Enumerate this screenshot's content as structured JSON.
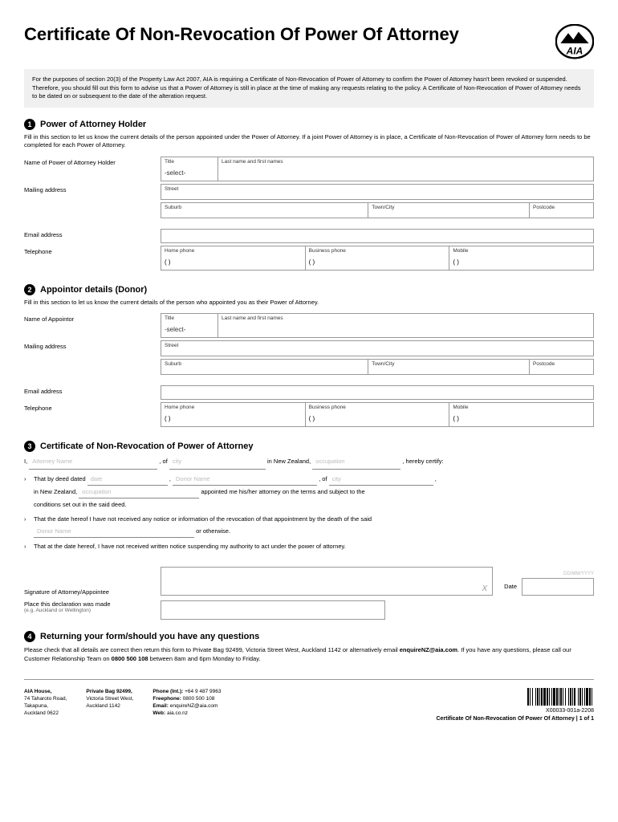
{
  "title": "Certificate Of Non-Revocation Of Power Of Attorney",
  "logo_text": "AIA",
  "intro": "For the purposes of section 20(3) of the Property Law Act 2007, AIA is requiring a Certificate of Non-Revocation of Power of Attorney to confirm the Power of Attorney hasn't been revoked or suspended. Therefore, you should fill out this form to advise us that a Power of Attorney is still in place at the time of making any requests relating to the policy. A Certificate of Non-Revocation of Power of Attorney needs to be dated on or subsequent to the date of the alteration request.",
  "s1": {
    "num": "1",
    "title": "Power of Attorney Holder",
    "desc": "Fill in this section to let us know the current details of the person appointed under the Power of Attorney. If a joint Power of Attorney is in place, a Certificate of Non-Revocation of Power of Attorney form needs to be completed for each Power of Attorney.",
    "name_label": "Name of Power of Attorney Holder",
    "mail_label": "Mailing address",
    "email_label": "Email address",
    "tel_label": "Telephone"
  },
  "s2": {
    "num": "2",
    "title": "Appointor details (Donor)",
    "desc": "Fill in this section to let us know the current details of the person who appointed you as their Power of Attorney.",
    "name_label": "Name of Appointor",
    "mail_label": "Mailing address",
    "email_label": "Email address",
    "tel_label": "Telephone"
  },
  "s3": {
    "num": "3",
    "title": "Certificate of Non-Revocation of Power of Attorney",
    "line_i": "I,",
    "attorney_name": "Attorney Name",
    "of": ", of",
    "city": "city",
    "in_nz": "in New Zealand,",
    "occupation": "occupation",
    "hereby": ", hereby certify:",
    "b1a": "That by deed dated",
    "date": "date",
    "comma": ",",
    "donor": "Donor Name",
    "b1b": "in New Zealand,",
    "b1c": "appointed me his/her attorney on the terms and subject to the",
    "b1d": "conditions set out in the said deed.",
    "b2a": "That the date hereof I have not received any notice or information of the revocation of that appointment by the death of the said",
    "b2b": "or otherwise.",
    "b3": "That at the date hereof, I have not received written notice suspending my authority to act under the power of attorney.",
    "sig_label": "Signature of Attorney/Appointee",
    "date_label": "Date",
    "date_hint": "DD/MM/YYYY",
    "place_label": "Place this declaration was made",
    "place_sub": "(e.g. Auckland or Wellington)"
  },
  "s4": {
    "num": "4",
    "title": "Returning your form/should you have any questions",
    "text1": "Please check that all details are correct then return this form to Private Bag 92499, Victoria Street West, Auckland 1142 or alternatively email ",
    "email": "enquireNZ@aia.com",
    "text2": ". If you have any questions, please call our Customer Relationship Team on ",
    "phone": "0800 500 108",
    "text3": " between 8am and 6pm Monday to Friday."
  },
  "fields": {
    "title": "Title",
    "select": "-select-",
    "lastname": "Last name and first names",
    "street": "Street",
    "suburb": "Suburb",
    "town": "Town/City",
    "postcode": "Postcode",
    "home": "Home phone",
    "business": "Business phone",
    "mobile": "Mobile",
    "paren": "(        )"
  },
  "footer": {
    "col1": {
      "name": "AIA House,",
      "l1": "74 Taharoto Road,",
      "l2": "Takapuna,",
      "l3": "Auckland 0622"
    },
    "col2": {
      "name": "Private Bag 92499,",
      "l1": "Victoria Street West,",
      "l2": "Auckland 1142"
    },
    "col3": {
      "l1a": "Phone (Int.):",
      "l1b": " +64 9 487 9963",
      "l2a": "Freephone:",
      "l2b": " 0800 500 108",
      "l3a": "Email:",
      "l3b": " enquireNZ@aia.com",
      "l4a": "Web:",
      "l4b": " aia.co.nz"
    },
    "code": "X00033-001a-2208",
    "pageinfo": "Certificate Of Non-Revocation Of Power Of Attorney  |  1 of 1"
  }
}
